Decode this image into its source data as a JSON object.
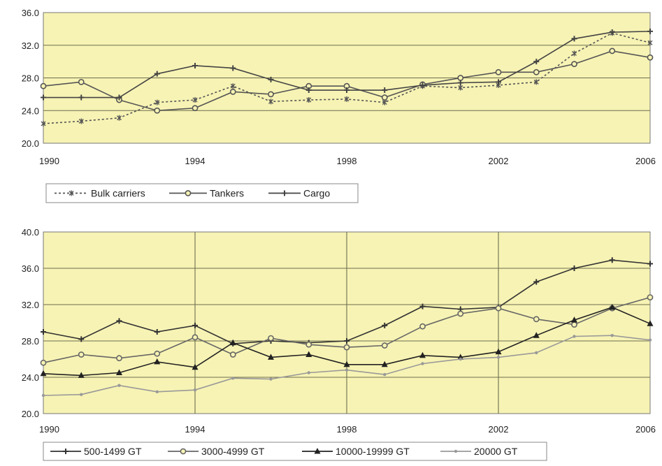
{
  "chart_data": [
    {
      "type": "line",
      "title": "",
      "xlabel": "",
      "ylabel": "",
      "xlim": [
        1990,
        2006
      ],
      "ylim": [
        20.0,
        36.0
      ],
      "grid": "horizontal",
      "legend_placement": "bottom-left",
      "x_ticks": [
        "1990",
        "1994",
        "1998",
        "2002",
        "2006"
      ],
      "y_ticks": [
        "20.0",
        "24.0",
        "28.0",
        "32.0",
        "36.0"
      ],
      "x": [
        1990,
        1991,
        1992,
        1993,
        1994,
        1995,
        1996,
        1997,
        1998,
        1999,
        2000,
        2001,
        2002,
        2003,
        2004,
        2005,
        2006
      ],
      "series": [
        {
          "name": "Bulk carriers",
          "color": "#555555",
          "dash": "dotted",
          "values": [
            22.4,
            22.7,
            23.1,
            25.0,
            25.3,
            27.0,
            25.1,
            25.3,
            25.4,
            25.0,
            27.0,
            26.8,
            27.1,
            27.5,
            31.0,
            33.5,
            32.3
          ]
        },
        {
          "name": "Tankers",
          "color": "#555555",
          "dash": "solid",
          "values": [
            27.0,
            27.5,
            25.3,
            24.0,
            24.3,
            26.3,
            26.0,
            27.0,
            27.0,
            25.6,
            27.2,
            28.0,
            28.7,
            28.7,
            29.7,
            31.3,
            30.5
          ]
        },
        {
          "name": "Cargo",
          "color": "#444444",
          "dash": "solid",
          "values": [
            25.6,
            25.6,
            25.6,
            28.5,
            29.5,
            29.2,
            27.8,
            26.5,
            26.5,
            26.5,
            27.1,
            27.4,
            27.5,
            30.0,
            32.8,
            33.6,
            33.7
          ]
        }
      ]
    },
    {
      "type": "line",
      "title": "",
      "xlabel": "",
      "ylabel": "",
      "xlim": [
        1990,
        2006
      ],
      "ylim": [
        20.0,
        40.0
      ],
      "grid": "both",
      "legend_placement": "bottom-left",
      "x_ticks": [
        "1990",
        "1994",
        "1998",
        "2002",
        "2006"
      ],
      "y_ticks": [
        "20.0",
        "24.0",
        "28.0",
        "32.0",
        "36.0",
        "40.0"
      ],
      "x": [
        1990,
        1991,
        1992,
        1993,
        1994,
        1995,
        1996,
        1997,
        1998,
        1999,
        2000,
        2001,
        2002,
        2003,
        2004,
        2005,
        2006
      ],
      "series": [
        {
          "name": "500-1499 GT",
          "color": "#333333",
          "dash": "solid",
          "marker": "plus",
          "values": [
            29.0,
            28.2,
            30.2,
            29.0,
            29.7,
            27.7,
            28.0,
            27.8,
            28.0,
            29.7,
            31.8,
            31.5,
            31.7,
            34.5,
            36.0,
            36.9,
            36.5
          ]
        },
        {
          "name": "3000-4999 GT",
          "color": "#666666",
          "dash": "solid",
          "marker": "circle",
          "values": [
            25.6,
            26.5,
            26.1,
            26.6,
            28.4,
            26.5,
            28.3,
            27.6,
            27.3,
            27.5,
            29.6,
            31.0,
            31.6,
            30.4,
            29.8,
            31.6,
            32.8
          ]
        },
        {
          "name": "10000-19999 GT",
          "color": "#222222",
          "dash": "solid",
          "marker": "triangle",
          "values": [
            24.4,
            24.2,
            24.5,
            25.7,
            25.1,
            27.8,
            26.2,
            26.5,
            25.4,
            25.4,
            26.4,
            26.2,
            26.8,
            28.6,
            30.3,
            31.7,
            29.9
          ]
        },
        {
          "name": "20000 GT",
          "color": "#999999",
          "dash": "solid",
          "marker": "dot",
          "values": [
            22.0,
            22.1,
            23.1,
            22.4,
            22.6,
            23.9,
            23.8,
            24.5,
            24.8,
            24.3,
            25.5,
            26.0,
            26.2,
            26.7,
            28.5,
            28.6,
            28.1
          ]
        }
      ]
    }
  ]
}
